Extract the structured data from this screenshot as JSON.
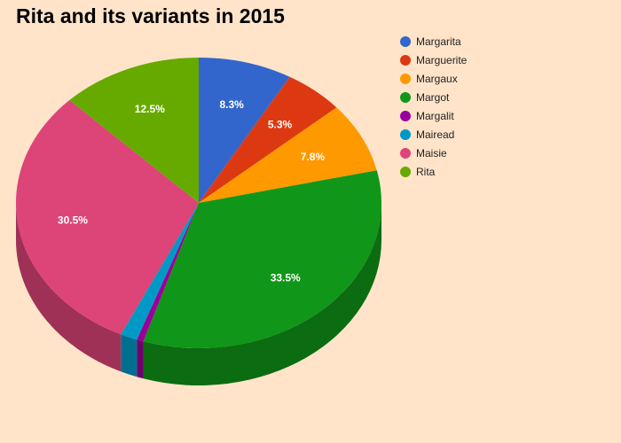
{
  "chart_data": {
    "type": "pie",
    "title": "Rita and its variants in 2015",
    "three_d": true,
    "legend_position": "top-right",
    "slices": [
      {
        "name": "Margarita",
        "value": 8.3,
        "label": "8.3%",
        "color": "#3366cc"
      },
      {
        "name": "Marguerite",
        "value": 5.3,
        "label": "5.3%",
        "color": "#dc3912"
      },
      {
        "name": "Margaux",
        "value": 7.8,
        "label": "7.8%",
        "color": "#ff9900"
      },
      {
        "name": "Margot",
        "value": 33.5,
        "label": "33.5%",
        "color": "#109618"
      },
      {
        "name": "Margalit",
        "value": 0.6,
        "label": "",
        "color": "#990099"
      },
      {
        "name": "Mairead",
        "value": 1.5,
        "label": "",
        "color": "#0099c6"
      },
      {
        "name": "Maisie",
        "value": 30.5,
        "label": "30.5%",
        "color": "#dd4477"
      },
      {
        "name": "Rita",
        "value": 12.5,
        "label": "12.5%",
        "color": "#66aa00"
      }
    ]
  }
}
